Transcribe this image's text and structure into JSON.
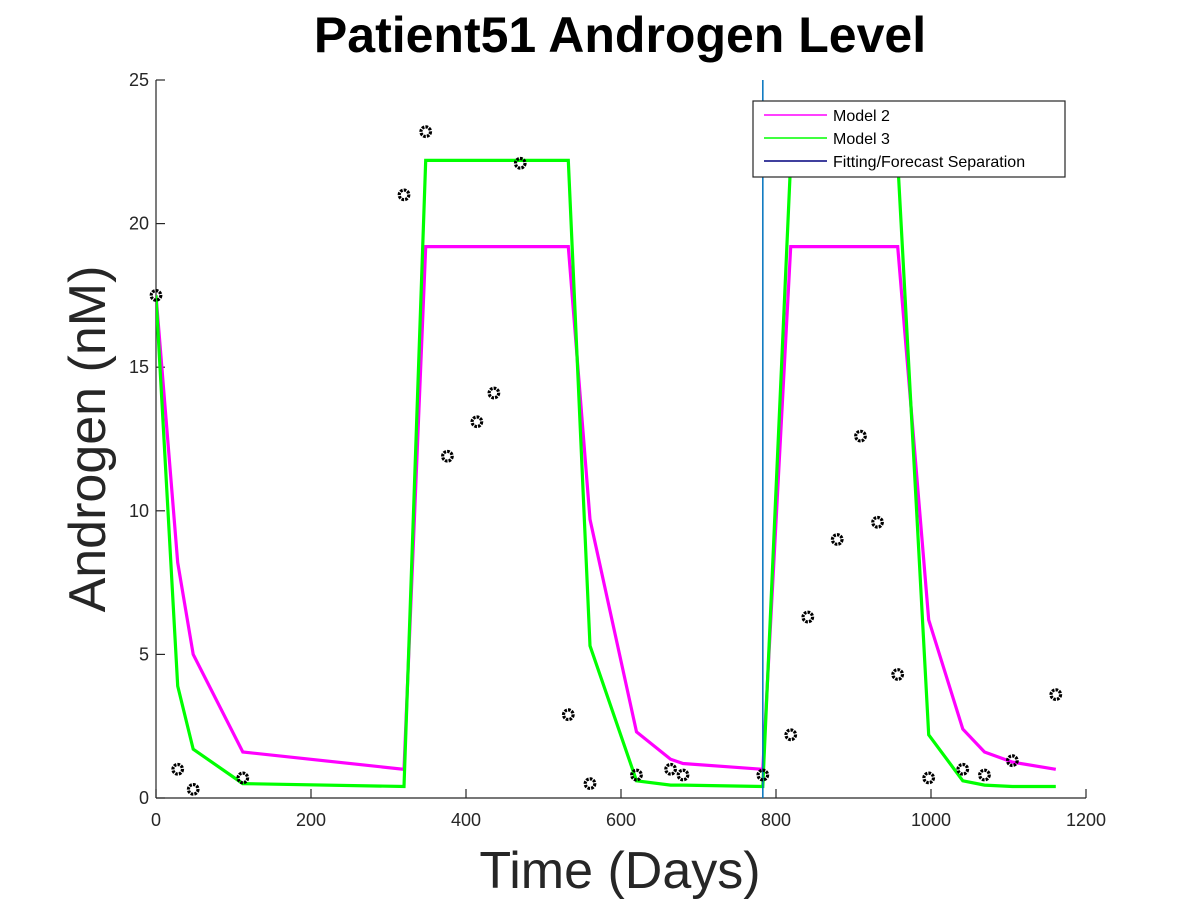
{
  "chart_data": {
    "type": "line",
    "title": "Patient51 Androgen Level",
    "xlabel": "Time (Days)",
    "ylabel": "Androgen (nM)",
    "xlim": [
      0,
      1200
    ],
    "ylim": [
      0,
      25
    ],
    "xticks": [
      0,
      200,
      400,
      600,
      800,
      1000,
      1200
    ],
    "yticks": [
      0,
      5,
      10,
      15,
      20,
      25
    ],
    "xtick_labels": [
      "0",
      "200",
      "400",
      "600",
      "800",
      "1000",
      "1200"
    ],
    "ytick_labels": [
      "0",
      "5",
      "10",
      "15",
      "20",
      "25"
    ],
    "grid": false,
    "legend_position": "top-right",
    "separation_x": 783,
    "series": [
      {
        "name": "Model 2",
        "color": "#ff00ff",
        "x": [
          0,
          28,
          48,
          112,
          320,
          348,
          532,
          560,
          620,
          664,
          680,
          783,
          819,
          957,
          997,
          1041,
          1069,
          1105,
          1161
        ],
        "y": [
          17.5,
          8.2,
          5.0,
          1.6,
          1.0,
          19.2,
          19.2,
          9.7,
          2.3,
          1.35,
          1.2,
          1.0,
          19.2,
          19.2,
          6.2,
          2.4,
          1.6,
          1.25,
          1.0
        ]
      },
      {
        "name": "Model 3",
        "color": "#00ff00",
        "x": [
          0,
          28,
          48,
          112,
          320,
          348,
          532,
          560,
          620,
          664,
          680,
          783,
          819,
          957,
          997,
          1041,
          1069,
          1105,
          1161
        ],
        "y": [
          17.5,
          3.9,
          1.7,
          0.5,
          0.4,
          22.2,
          22.2,
          5.3,
          0.6,
          0.45,
          0.45,
          0.4,
          22.2,
          22.2,
          2.2,
          0.6,
          0.45,
          0.4,
          0.4
        ]
      },
      {
        "name": "Fitting/Forecast Separation",
        "color": "#0072bd",
        "legend_color": "#00007f"
      }
    ],
    "observed": {
      "color": "#000000",
      "x": [
        0,
        28,
        48,
        112,
        320,
        348,
        376,
        414,
        436,
        470,
        532,
        560,
        620,
        664,
        680,
        783,
        819,
        841,
        879,
        909,
        931,
        957,
        997,
        1041,
        1069,
        1105,
        1161
      ],
      "y": [
        17.5,
        1.0,
        0.3,
        0.7,
        21.0,
        23.2,
        11.9,
        13.1,
        14.1,
        22.1,
        2.9,
        0.5,
        0.8,
        1.0,
        0.8,
        0.8,
        2.2,
        6.3,
        9.0,
        12.6,
        9.6,
        4.3,
        0.7,
        1.0,
        0.8,
        1.3,
        3.6
      ]
    }
  }
}
